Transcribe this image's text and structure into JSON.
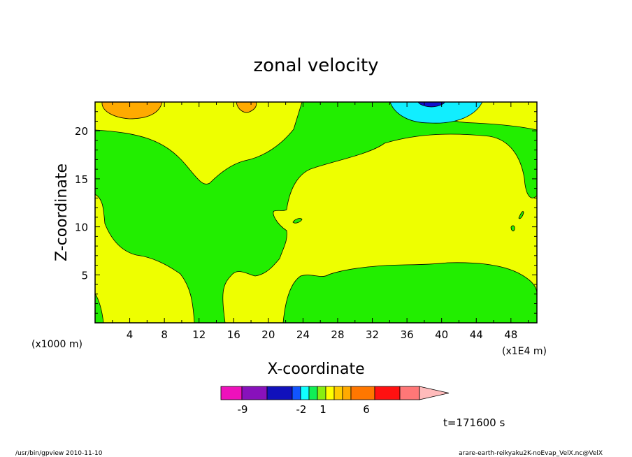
{
  "chart_data": {
    "type": "heatmap",
    "title": "zonal velocity",
    "xlabel": "X-coordinate",
    "ylabel": "Z-coordinate",
    "x_scale_note": "(x1E4 m)",
    "y_scale_note": "(x1000 m)",
    "xlim": [
      0,
      51
    ],
    "ylim": [
      0,
      23
    ],
    "x_ticks": [
      "4",
      "8",
      "12",
      "16",
      "20",
      "24",
      "28",
      "32",
      "36",
      "40",
      "44",
      "48"
    ],
    "y_ticks": [
      "5",
      "10",
      "15",
      "20"
    ],
    "background_color": "#eeff00",
    "regions": [
      {
        "level": "0 to 1",
        "color": "#eeff00",
        "description": "main background field"
      },
      {
        "level": "-1 to 0",
        "color": "#22ee00",
        "description": "large branching low-speed band"
      },
      {
        "level": "1 to 2",
        "color": "#ffaa00",
        "description": "top-left cell near x=6, z=22.5"
      },
      {
        "level": "1 to 2",
        "color": "#ffaa00",
        "description": "top cell near x=17.5, z=22.5"
      },
      {
        "level": "-2 to -1",
        "color": "#11eeff",
        "description": "top cell near x=39, z=22"
      },
      {
        "level": "-3 to -2",
        "color": "#1111cc",
        "description": "top core near x=39, z=23"
      }
    ],
    "colorbar": {
      "colors": [
        "#ee11bb",
        "#8811bb",
        "#1111bb",
        "#1155ff",
        "#11ffff",
        "#11ee55",
        "#88ee11",
        "#ffff00",
        "#ffcc00",
        "#ffaa00",
        "#ff7700",
        "#ff1111",
        "#ff7777",
        "#ffbbbb"
      ],
      "labels": [
        "-9",
        "-2",
        "1",
        "6"
      ]
    }
  },
  "time_label": "t=171600 s",
  "footer": {
    "left": "/usr/bin/gpview  2010-11-10",
    "right": "arare-earth-reikyaku2K-noEvap_VelX.nc@VelX"
  }
}
